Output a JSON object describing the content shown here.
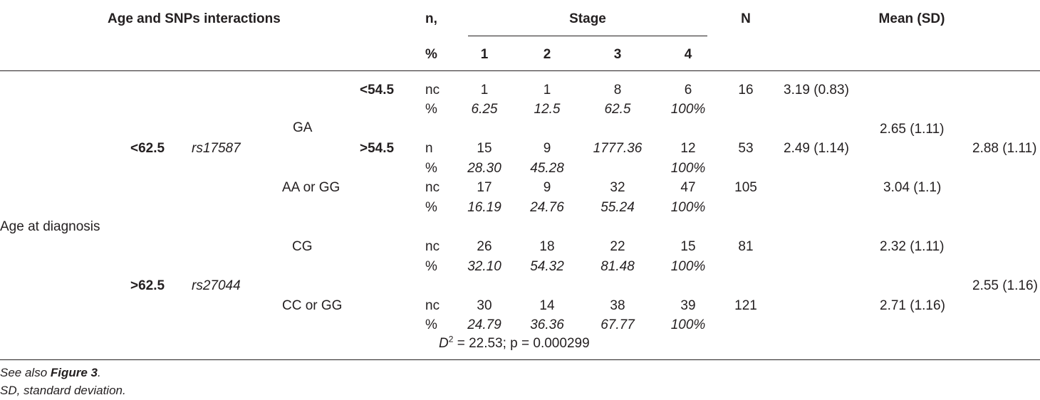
{
  "header": {
    "title": "Age and SNPs interactions",
    "n_label": "n,",
    "pct_label": "%",
    "stage_label": "Stage",
    "stage_cols": [
      "1",
      "2",
      "3",
      "4"
    ],
    "N_label": "N",
    "mean_label": "Mean (SD)"
  },
  "body": {
    "age_label": "Age at diagnosis",
    "age_lt": "<62.5",
    "age_gt": ">62.5",
    "snp1": "rs17587",
    "snp2": "rs27044",
    "geno_ga": "GA",
    "geno_aa_gg": "AA or GG",
    "geno_cg": "CG",
    "geno_cc_gg": "CC or GG",
    "sub_lt": "<54.5",
    "sub_gt": ">54.5",
    "rows": [
      {
        "count_label": "nc",
        "pct_label": "%",
        "counts": [
          "1",
          "1",
          "8",
          "6"
        ],
        "pcts": [
          "6.25",
          "12.5",
          "62.5",
          "100%"
        ],
        "N": "16",
        "mean": "3.19 (0.83)"
      },
      {
        "count_label": "n",
        "pct_label": "%",
        "counts": [
          "15",
          "9",
          "1777.36",
          "12"
        ],
        "pcts": [
          "28.30",
          "45.28",
          "",
          "100%"
        ],
        "N": "53",
        "mean": "2.49 (1.14)"
      },
      {
        "count_label": "nc",
        "pct_label": "%",
        "counts": [
          "17",
          "9",
          "32",
          "47"
        ],
        "pcts": [
          "16.19",
          "24.76",
          "55.24",
          "100%"
        ],
        "N": "105",
        "mean": "3.04 (1.1)"
      },
      {
        "count_label": "nc",
        "pct_label": "%",
        "counts": [
          "26",
          "18",
          "22",
          "15"
        ],
        "pcts": [
          "32.10",
          "54.32",
          "81.48",
          "100%"
        ],
        "N": "81",
        "mean": "2.32 (1.11)"
      },
      {
        "count_label": "nc",
        "pct_label": "%",
        "counts": [
          "30",
          "14",
          "38",
          "39"
        ],
        "pcts": [
          "24.79",
          "36.36",
          "67.77",
          "100%"
        ],
        "N": "121",
        "mean": "2.71 (1.16)"
      }
    ],
    "mean_ga": "2.65 (1.11)",
    "mean_lt62": "2.88 (1.11)",
    "mean_gt62": "2.55 (1.16)",
    "stat_d": "D",
    "stat_sup": "2",
    "stat_rest": " = 22.53; p = 0.000299"
  },
  "footnotes": {
    "see_also_prefix": "See also ",
    "see_also_link": "Figure 3",
    "see_also_suffix": ".",
    "sd_note": "SD, standard deviation."
  }
}
